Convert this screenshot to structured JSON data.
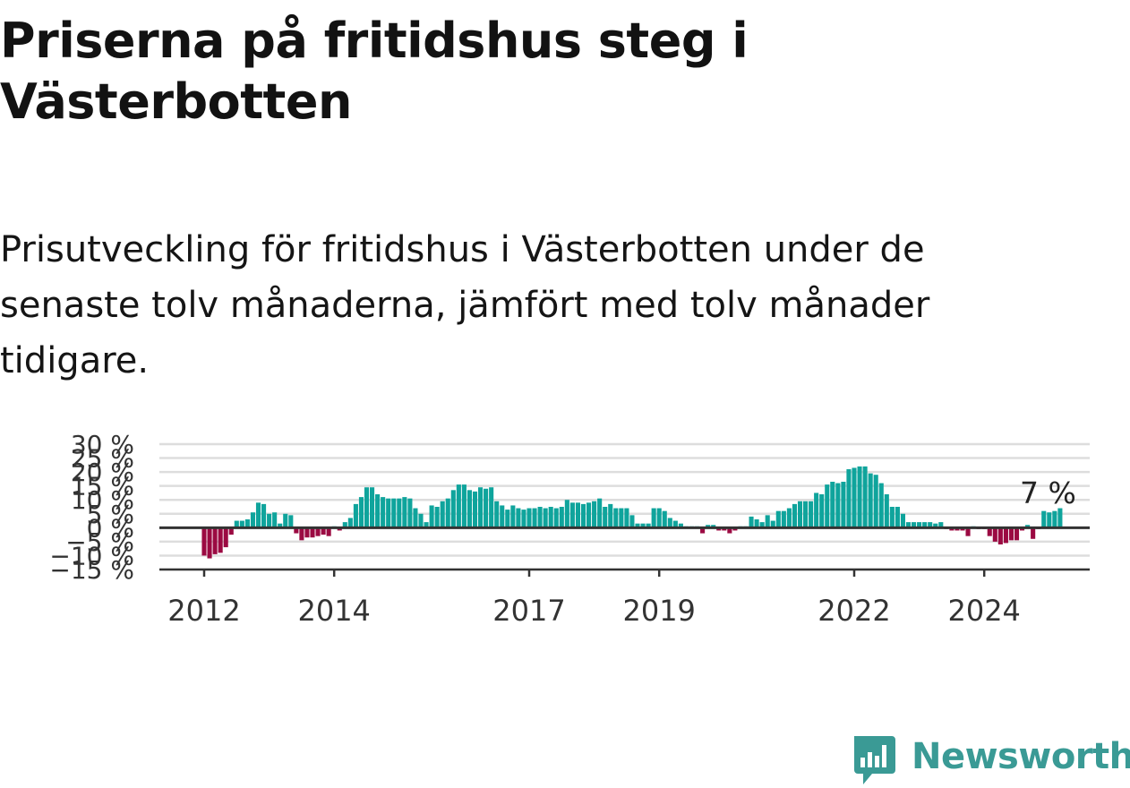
{
  "title": "Priserna på fritidshus steg i Västerbotten",
  "subtitle": "Prisutveckling för fritidshus i Västerbotten under de senaste tolv månaderna, jämfört med tolv månader tidigare.",
  "brand": {
    "name": "Newsworthy",
    "color": "#3a9a95",
    "icon": "newsworthy-logo-icon"
  },
  "colors": {
    "positive": "#0fa49c",
    "negative": "#9b0a42",
    "grid": "#dddddd",
    "axis": "#333333"
  },
  "chart_data": {
    "type": "bar",
    "title": "",
    "xlabel": "",
    "ylabel": "",
    "ylim": [
      -15,
      30
    ],
    "y_ticks": [
      "30 %",
      "25 %",
      "20 %",
      "15 %",
      "10 %",
      "5 %",
      "0 %",
      "-5 %",
      "-10 %",
      "-15 %"
    ],
    "x_ticks": [
      {
        "label": "2012",
        "index": 0
      },
      {
        "label": "2014",
        "index": 24
      },
      {
        "label": "2017",
        "index": 60
      },
      {
        "label": "2019",
        "index": 84
      },
      {
        "label": "2022",
        "index": 120
      },
      {
        "label": "2024",
        "index": 144
      }
    ],
    "annotation": {
      "text": "7 %",
      "index": 156
    },
    "start": "2012-01",
    "values": [
      -10,
      -11,
      -9.5,
      -9,
      -7,
      -2.5,
      2.5,
      2.5,
      3,
      5.5,
      9,
      8.5,
      5,
      5.5,
      1.5,
      5,
      4.5,
      -2,
      -4.5,
      -3.5,
      -3.5,
      -3,
      -2.5,
      -3,
      0.5,
      -1,
      2,
      3.5,
      8.5,
      11,
      14.5,
      14.5,
      12,
      11,
      10.5,
      10.5,
      10.5,
      11,
      10.5,
      7,
      5,
      2,
      8,
      7.5,
      9.5,
      10.5,
      13.5,
      15.5,
      15.5,
      13.5,
      13,
      14.5,
      14,
      14.5,
      9.5,
      8,
      6.5,
      8,
      7,
      6.5,
      7,
      7,
      7.5,
      7,
      7.5,
      7,
      7.5,
      10,
      9,
      9,
      8.5,
      9,
      9.5,
      10.5,
      7.5,
      8.5,
      7,
      7,
      7,
      4.5,
      1.5,
      1.5,
      1.5,
      7,
      7,
      6,
      3.5,
      2.5,
      1.5,
      0.5,
      0.5,
      0.5,
      -2,
      1,
      1,
      -1,
      -1,
      -2,
      -1,
      0.5,
      0.5,
      4,
      3,
      2,
      4.5,
      2.5,
      6,
      6,
      7,
      8.5,
      9.5,
      9.5,
      9.5,
      12.5,
      12,
      15.5,
      16.5,
      16,
      16.5,
      21,
      21.5,
      22,
      22,
      19.5,
      19,
      16,
      12,
      7.5,
      7.5,
      5,
      2,
      2,
      2,
      2,
      2,
      1.5,
      2,
      -0.5,
      -1,
      -1,
      -1,
      -3,
      0.5,
      -0.5,
      -0.5,
      -3,
      -5,
      -6,
      -5.5,
      -4.5,
      -4.5,
      -1,
      1,
      -4,
      -0.5,
      6,
      5.5,
      6,
      7
    ]
  }
}
